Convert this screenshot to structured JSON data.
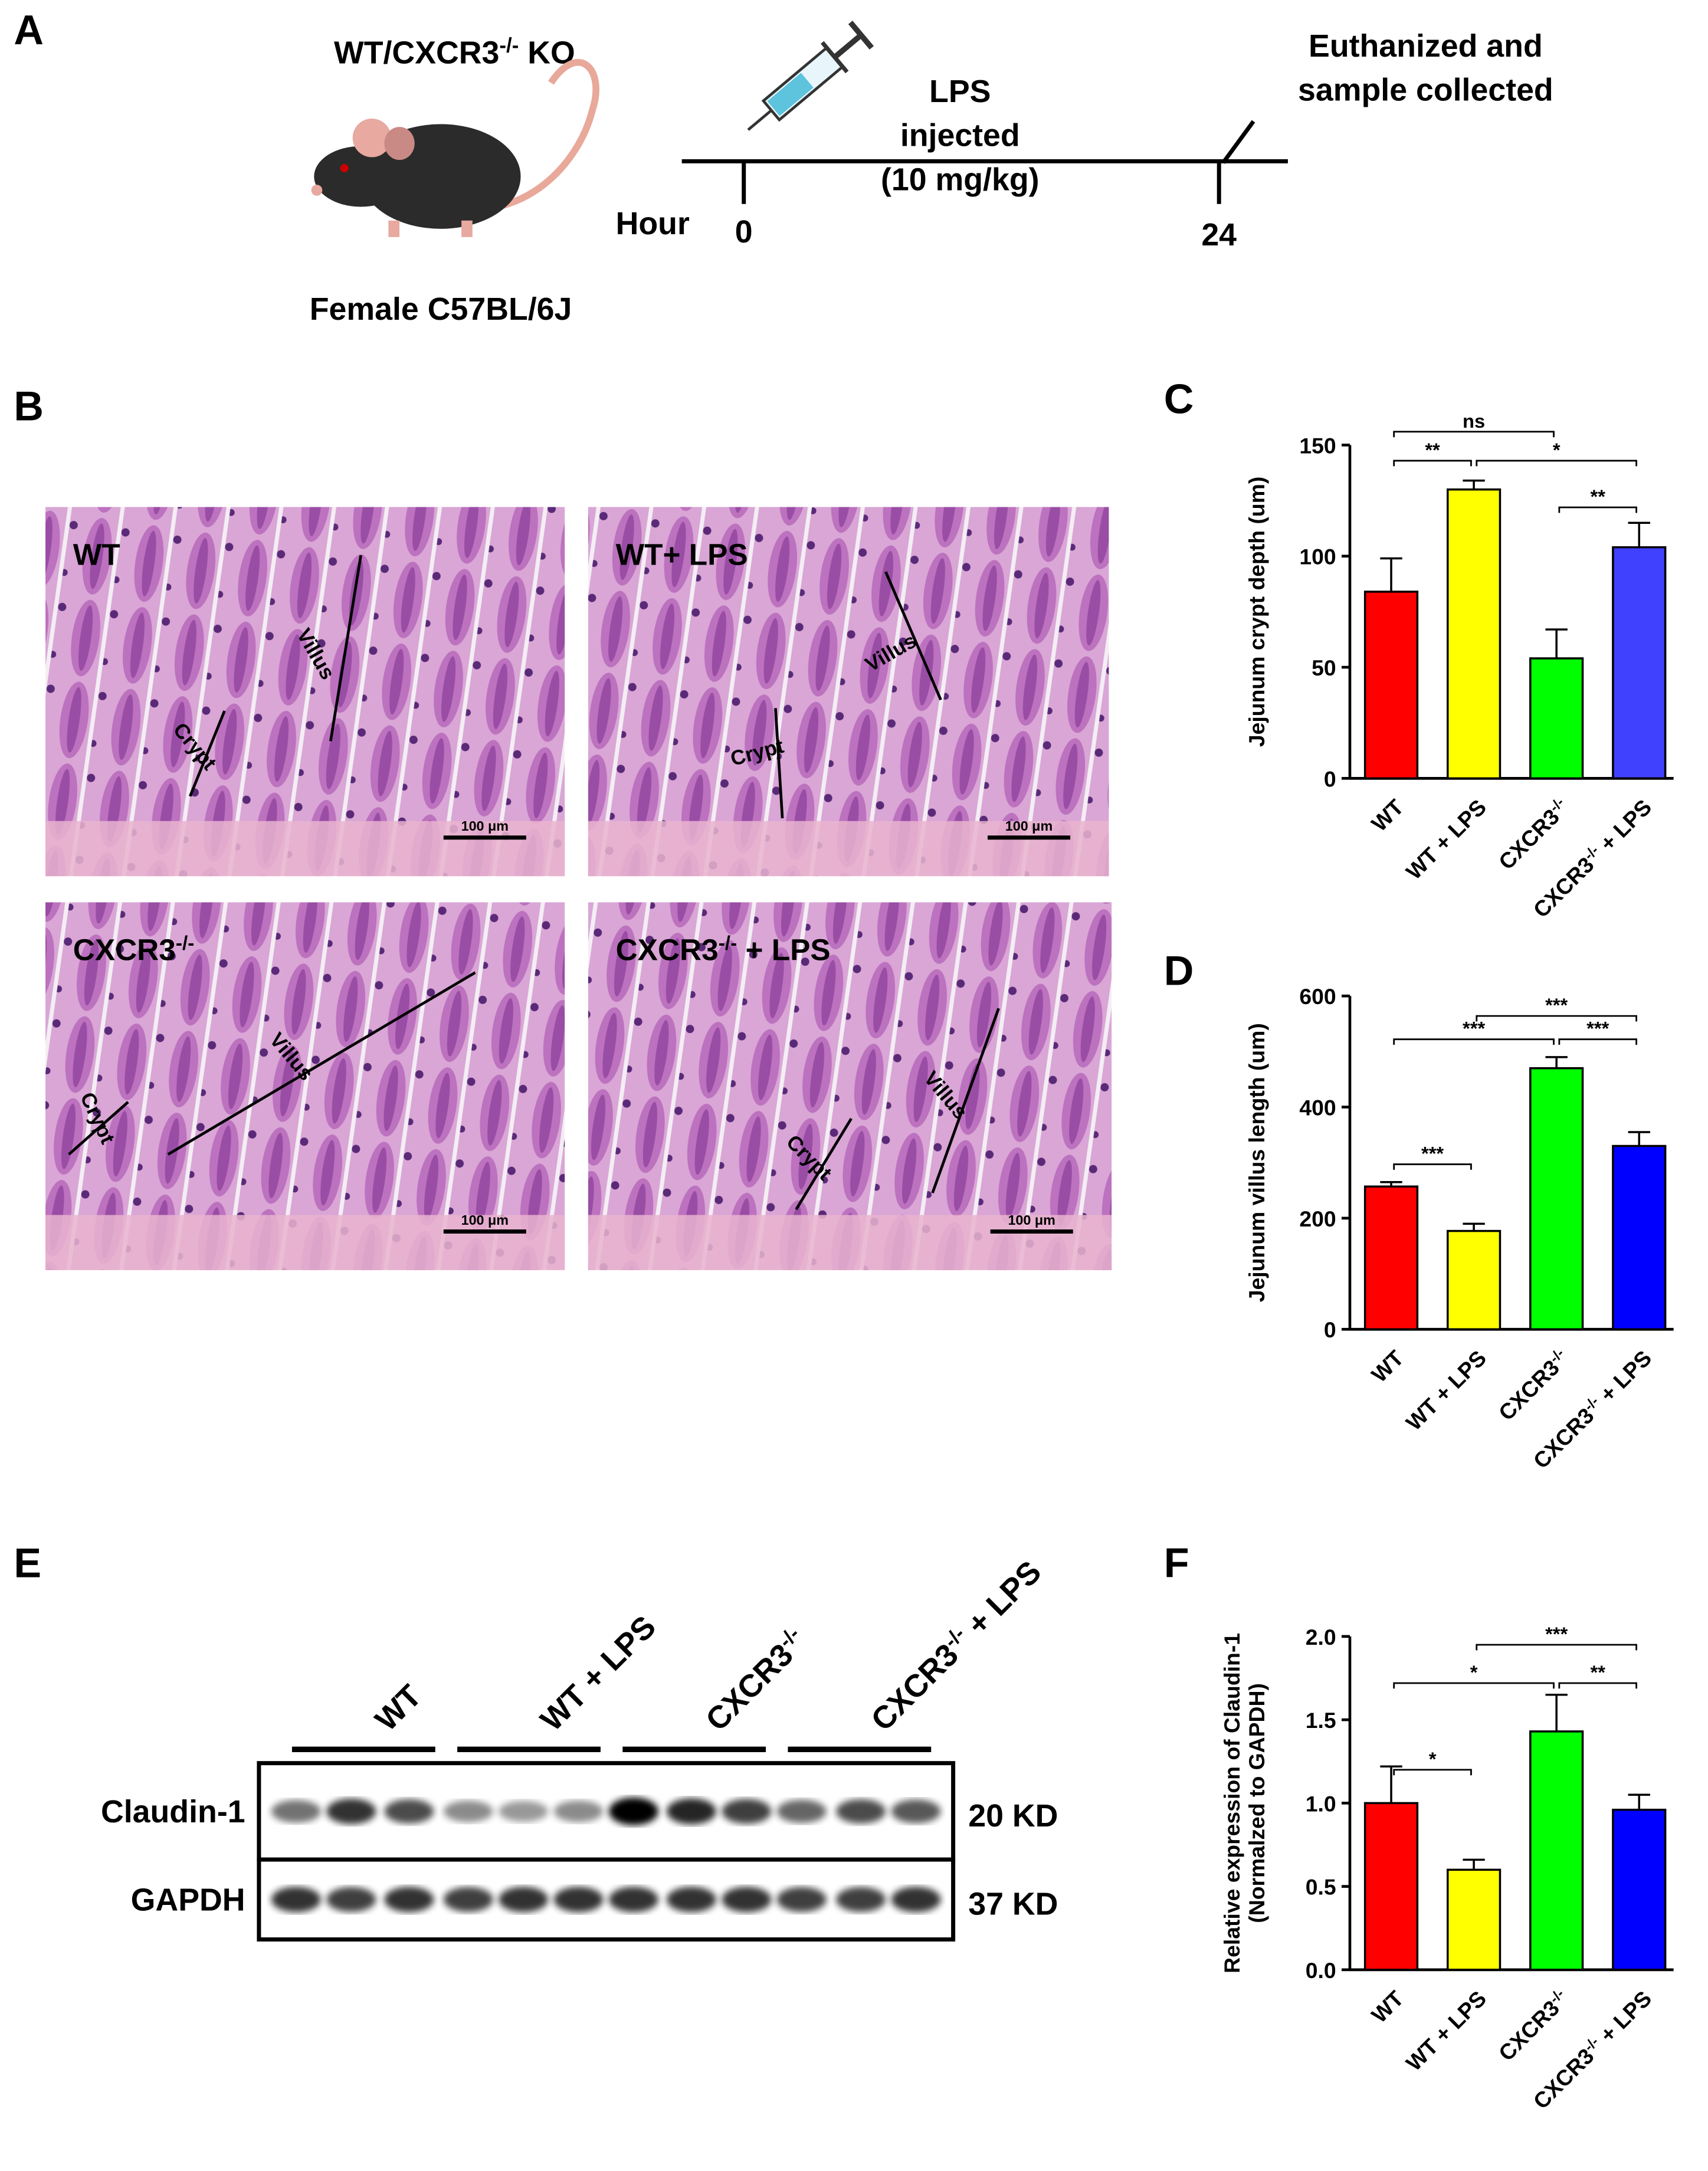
{
  "panel_a": {
    "label": "A",
    "strain": "WT/CXCR3-/- KO",
    "sex": "Female C57BL/6J",
    "time_axis_label": "Hour",
    "time_ticks": [
      0,
      24
    ],
    "injection": [
      "LPS",
      "injected",
      "(10 mg/kg)"
    ],
    "endpoint": [
      "Euthanized and",
      "sample collected"
    ]
  },
  "panel_b": {
    "label": "B",
    "images": [
      {
        "label": "WT",
        "villus": "Villus",
        "crypt": "Crypt",
        "scale_bar": "100 μm"
      },
      {
        "label": "WT+ LPS",
        "villus": "Villus",
        "crypt": "Crypt",
        "scale_bar": "100 μm"
      },
      {
        "label": "CXCR3-/-",
        "villus": "Villus",
        "crypt": "Crypt",
        "scale_bar": "100 μm"
      },
      {
        "label": "CXCR3-/- + LPS",
        "villus": "Villus",
        "crypt": "Crypt",
        "scale_bar": "100 μm"
      }
    ]
  },
  "panel_e": {
    "label": "E",
    "groups": [
      "WT",
      "WT + LPS",
      "CXCR3-/-",
      "CXCR3-/- + LPS"
    ],
    "proteins": [
      {
        "name": "Claudin-1",
        "size": "20 KD"
      },
      {
        "name": "GAPDH",
        "size": "37 KD"
      }
    ]
  },
  "chart_data": [
    {
      "type": "bar",
      "panel": "C",
      "y_label": [
        "Jejunum crypt depth (um)"
      ],
      "categories": [
        "WT",
        "WT + LPS",
        "CXCR3-/-",
        "CXCR3-/- + LPS"
      ],
      "values": [
        84,
        130,
        54,
        104
      ],
      "errors": [
        15,
        4,
        13,
        11
      ],
      "colors": [
        "#ff0000",
        "#ffff00",
        "#00ff00",
        "#4040ff"
      ],
      "ylim": [
        0,
        150
      ],
      "yticks": [
        0,
        50,
        100,
        150
      ],
      "significance": [
        "ns",
        "**",
        "*",
        "**"
      ]
    },
    {
      "type": "bar",
      "panel": "D",
      "y_label": [
        "Jejunum villus length (um)"
      ],
      "categories": [
        "WT",
        "WT + LPS",
        "CXCR3-/-",
        "CXCR3-/- + LPS"
      ],
      "values": [
        257,
        177,
        470,
        330
      ],
      "errors": [
        8,
        13,
        20,
        25
      ],
      "colors": [
        "#ff0000",
        "#ffff00",
        "#00ff00",
        "#0000ff"
      ],
      "ylim": [
        0,
        600
      ],
      "yticks": [
        0,
        200,
        400,
        600
      ],
      "significance": [
        "***",
        "***",
        "***",
        "***"
      ]
    },
    {
      "type": "bar",
      "panel": "F",
      "y_label": [
        "Relative expression of Claudin-1",
        "(Normalzed to GAPDH)"
      ],
      "categories": [
        "WT",
        "WT + LPS",
        "CXCR3-/-",
        "CXCR3-/- + LPS"
      ],
      "values": [
        1.0,
        0.6,
        1.43,
        0.96
      ],
      "errors": [
        0.22,
        0.06,
        0.22,
        0.09
      ],
      "colors": [
        "#ff0000",
        "#ffff00",
        "#00ff00",
        "#0000ff"
      ],
      "ylim": [
        0,
        2
      ],
      "yticks": [
        {
          "value": 0,
          "label": "0.0"
        },
        {
          "value": 0.5,
          "label": "0.5"
        },
        {
          "value": 1,
          "label": "1.0"
        },
        {
          "value": 1.5,
          "label": "1.5"
        },
        {
          "value": 2,
          "label": "2.0"
        }
      ],
      "significance": [
        "***",
        "*",
        "**",
        "*"
      ]
    }
  ]
}
